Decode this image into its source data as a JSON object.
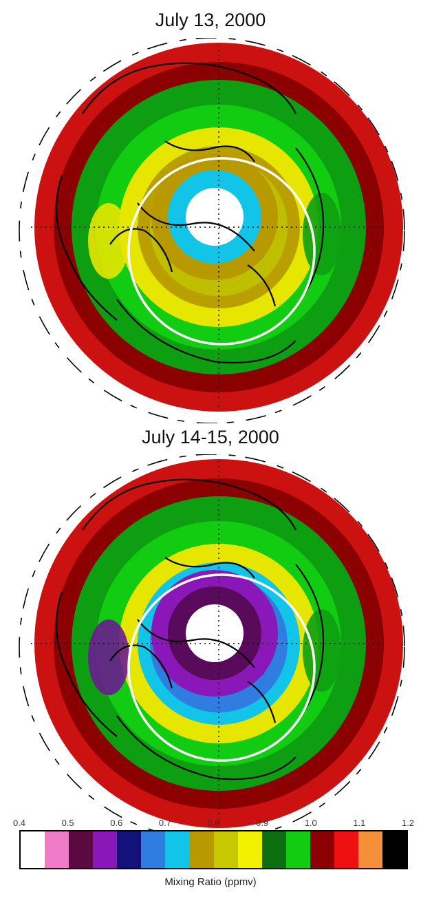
{
  "maps": [
    {
      "title": "July 13, 2000",
      "rings": [
        "#cc1111",
        "#8b0000",
        "#0e9e12",
        "#11cc11",
        "#e6e600",
        "#b9a000",
        "#bfbf00"
      ],
      "inner": [
        "#b89a00",
        "#11c4e8",
        "#ffffff"
      ],
      "patches": [
        {
          "color": "#2f7de0"
        },
        {
          "color": "#11c4e8"
        },
        {
          "color": "#e6e600"
        },
        {
          "color": "#0e9e12"
        }
      ]
    },
    {
      "title": "July 14-15, 2000",
      "rings": [
        "#cc1111",
        "#8b0000",
        "#0e9e12",
        "#11cc11",
        "#e6e600",
        "#11c4e8",
        "#2f7de0"
      ],
      "inner": [
        "#8a18b8",
        "#5a0a5a",
        "#ffffff"
      ],
      "patches": [
        {
          "color": "#1a1a7a"
        },
        {
          "color": "#f07cc8"
        },
        {
          "color": "#6a1c90"
        },
        {
          "color": "#0e9e12"
        }
      ]
    }
  ],
  "colorbar": {
    "label": "Mixing Ratio (ppmv)",
    "ticks": [
      "0.4",
      "0.5",
      "0.6",
      "0.7",
      "0.8",
      "0.9",
      "1.0",
      "1.1",
      "1.2"
    ],
    "colors": [
      "#ffffff",
      "#f07cc8",
      "#5a0a40",
      "#8a18b8",
      "#12127a",
      "#2f7de0",
      "#11c4e8",
      "#b89a00",
      "#c8c800",
      "#f2f200",
      "#0e6e12",
      "#11cc11",
      "#8b0000",
      "#ee1111",
      "#f5903a",
      "#000000"
    ]
  }
}
